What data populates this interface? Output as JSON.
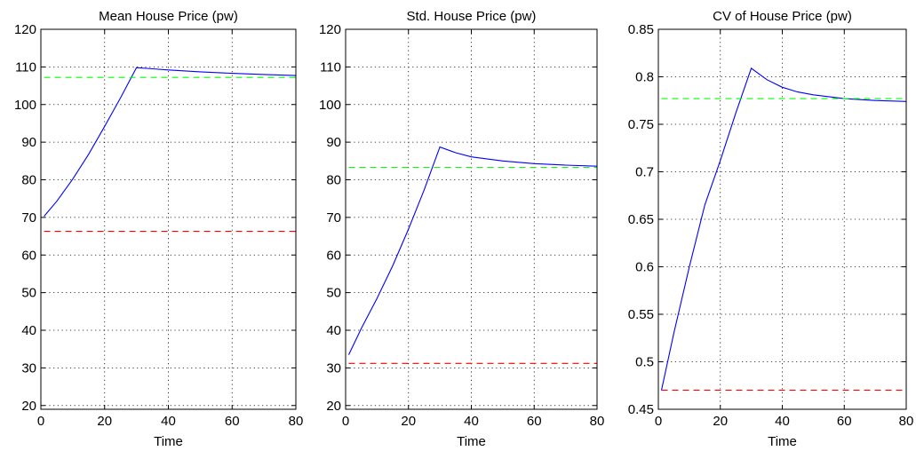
{
  "chart_data": [
    {
      "type": "line",
      "title": "Mean House Price (pw)",
      "xlabel": "Time",
      "ylabel": "",
      "xlim": [
        0,
        80
      ],
      "ylim": [
        19,
        120
      ],
      "xticks": [
        0,
        20,
        40,
        60,
        80
      ],
      "yticks": [
        20,
        30,
        40,
        50,
        60,
        70,
        80,
        90,
        100,
        110,
        120
      ],
      "grid": true,
      "x": [
        1,
        5,
        10,
        15,
        20,
        25,
        30,
        35,
        40,
        50,
        60,
        70,
        80
      ],
      "series": [
        {
          "color": "#0000ff",
          "style": "solid",
          "values": [
            70.3,
            74.3,
            80.2,
            86.8,
            94.2,
            101.8,
            109.8,
            109.5,
            109.2,
            108.7,
            108.3,
            108.0,
            107.7
          ]
        },
        {
          "color": "#00ff00",
          "style": "dashed",
          "values": [
            107.2,
            107.2,
            107.2,
            107.2,
            107.2,
            107.2,
            107.2,
            107.2,
            107.2,
            107.2,
            107.2,
            107.2,
            107.2
          ]
        },
        {
          "color": "#ff0000",
          "style": "dashed",
          "values": [
            66.3,
            66.3,
            66.3,
            66.3,
            66.3,
            66.3,
            66.3,
            66.3,
            66.3,
            66.3,
            66.3,
            66.3,
            66.3
          ]
        }
      ]
    },
    {
      "type": "line",
      "title": "Std. House Price (pw)",
      "xlabel": "Time",
      "ylabel": "",
      "xlim": [
        0,
        80
      ],
      "ylim": [
        19,
        120
      ],
      "xticks": [
        0,
        20,
        40,
        60,
        80
      ],
      "yticks": [
        20,
        30,
        40,
        50,
        60,
        70,
        80,
        90,
        100,
        110,
        120
      ],
      "grid": true,
      "x": [
        1,
        5,
        10,
        15,
        20,
        25,
        30,
        35,
        40,
        50,
        60,
        70,
        80
      ],
      "series": [
        {
          "color": "#0000ff",
          "style": "solid",
          "values": [
            33.5,
            40.5,
            48.5,
            57.2,
            66.9,
            77.3,
            88.7,
            87.2,
            86.1,
            85.0,
            84.3,
            83.9,
            83.6
          ]
        },
        {
          "color": "#00ff00",
          "style": "dashed",
          "values": [
            83.3,
            83.3,
            83.3,
            83.3,
            83.3,
            83.3,
            83.3,
            83.3,
            83.3,
            83.3,
            83.3,
            83.3,
            83.3
          ]
        },
        {
          "color": "#ff0000",
          "style": "dashed",
          "values": [
            31.2,
            31.2,
            31.2,
            31.2,
            31.2,
            31.2,
            31.2,
            31.2,
            31.2,
            31.2,
            31.2,
            31.2,
            31.2
          ]
        }
      ]
    },
    {
      "type": "line",
      "title": "CV of House Price (pw)",
      "xlabel": "Time",
      "ylabel": "",
      "xlim": [
        0,
        80
      ],
      "ylim": [
        0.45,
        0.85
      ],
      "xticks": [
        0,
        20,
        40,
        60,
        80
      ],
      "yticks": [
        0.45,
        0.5,
        0.55,
        0.6,
        0.65,
        0.7,
        0.75,
        0.8,
        0.85
      ],
      "grid": true,
      "x": [
        1,
        5,
        10,
        15,
        20,
        25,
        30,
        35,
        40,
        45,
        50,
        60,
        70,
        80
      ],
      "series": [
        {
          "color": "#0000ff",
          "style": "solid",
          "values": [
            0.47,
            0.53,
            0.6,
            0.665,
            0.712,
            0.762,
            0.809,
            0.797,
            0.789,
            0.784,
            0.781,
            0.777,
            0.775,
            0.774
          ]
        },
        {
          "color": "#00ff00",
          "style": "dashed",
          "values": [
            0.777,
            0.777,
            0.777,
            0.777,
            0.777,
            0.777,
            0.777,
            0.777,
            0.777,
            0.777,
            0.777,
            0.777,
            0.777,
            0.777
          ]
        },
        {
          "color": "#ff0000",
          "style": "dashed",
          "values": [
            0.47,
            0.47,
            0.47,
            0.47,
            0.47,
            0.47,
            0.47,
            0.47,
            0.47,
            0.47,
            0.47,
            0.47,
            0.47,
            0.47
          ]
        }
      ]
    }
  ]
}
